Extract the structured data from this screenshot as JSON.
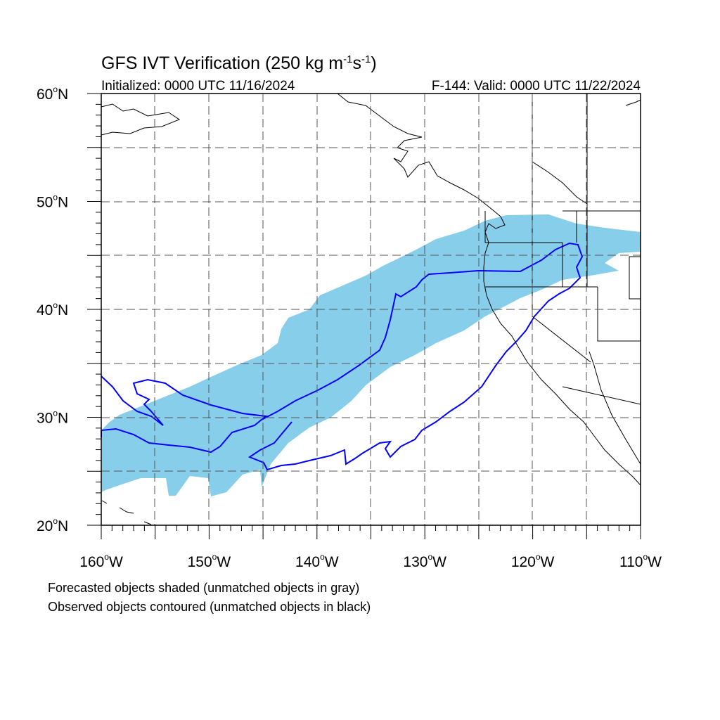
{
  "title_main": "GFS IVT Verification (250 kg m",
  "title_exp1": "-1",
  "title_s": "s",
  "title_exp2": "-1",
  "title_close": ")",
  "init_label": "Initialized: 0000 UTC 11/16/2024",
  "valid_label": "F-144: Valid: 0000 UTC 11/22/2024",
  "lat_labels": [
    {
      "text": "60",
      "unit": "N",
      "lat": 60
    },
    {
      "text": "50",
      "unit": "N",
      "lat": 50
    },
    {
      "text": "40",
      "unit": "N",
      "lat": 40
    },
    {
      "text": "30",
      "unit": "N",
      "lat": 30
    },
    {
      "text": "20",
      "unit": "N",
      "lat": 20
    }
  ],
  "lon_labels": [
    {
      "text": "160",
      "unit": "W",
      "lon": -160
    },
    {
      "text": "150",
      "unit": "W",
      "lon": -150
    },
    {
      "text": "140",
      "unit": "W",
      "lon": -140
    },
    {
      "text": "130",
      "unit": "W",
      "lon": -130
    },
    {
      "text": "120",
      "unit": "W",
      "lon": -120
    },
    {
      "text": "110",
      "unit": "W",
      "lon": -110
    }
  ],
  "note_forecast": "Forecasted objects shaded (unmatched objects in gray)",
  "note_observed": "Observed objects contoured (unmatched objects in black)",
  "colors": {
    "forecast_fill": "#87ceeb",
    "observed_contour": "#0000ff",
    "coast": "#000000",
    "grid": "#555555"
  },
  "map_extent": {
    "lon_min": -160,
    "lon_max": -110,
    "lat_min": 20,
    "lat_max": 60
  }
}
